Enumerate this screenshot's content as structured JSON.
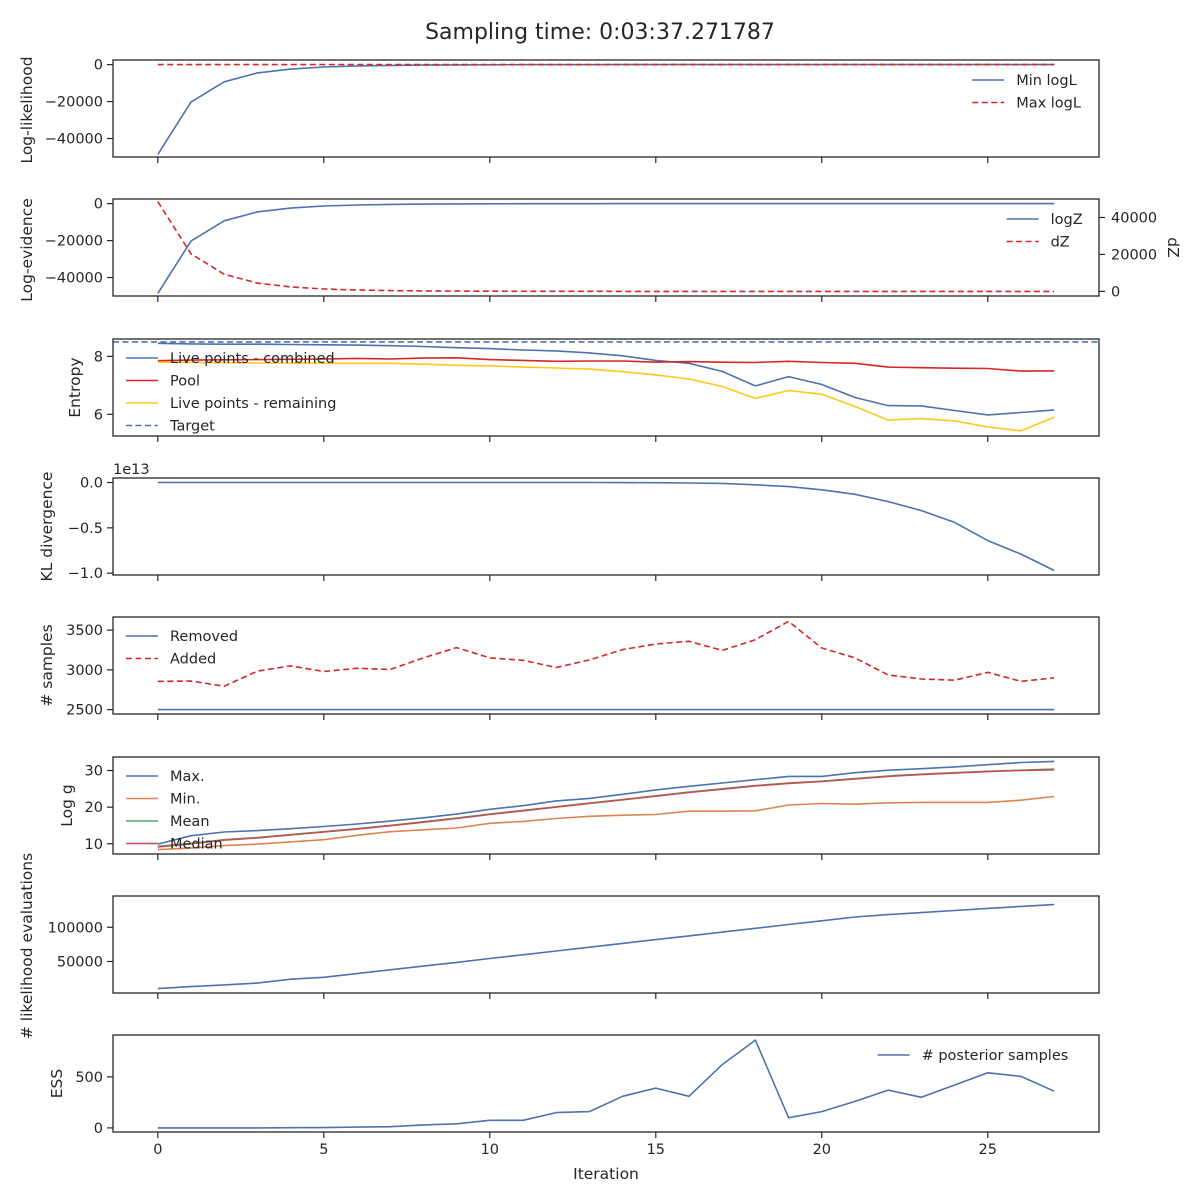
{
  "figure": {
    "title": "Sampling time: 0:03:37.271787",
    "xlabel": "Iteration"
  },
  "chart_data": [
    {
      "type": "line",
      "ylabel": "Log-likelihood",
      "xlim": [
        -1.35,
        28.35
      ],
      "ylim": [
        -50000,
        2500
      ],
      "yticks": [
        0,
        -20000,
        -40000
      ],
      "yticklabels": [
        "0",
        "−20000",
        "−40000"
      ],
      "legend": "upper right",
      "series": [
        {
          "name": "Min logL",
          "color": "#4c72b0",
          "dash": false,
          "x": [
            0,
            1,
            2,
            3,
            4,
            5,
            6,
            7,
            8,
            9,
            10,
            11,
            12,
            13,
            14,
            15,
            16,
            17,
            18,
            19,
            20,
            21,
            22,
            23,
            24,
            25,
            26,
            27
          ],
          "values": [
            -48600,
            -20300,
            -9300,
            -4500,
            -2400,
            -1300,
            -750,
            -420,
            -250,
            -150,
            -90,
            -55,
            -35,
            -20,
            -12,
            -7,
            -4,
            -2,
            -1,
            0,
            0,
            0,
            0,
            0,
            0,
            0,
            0,
            0
          ]
        },
        {
          "name": "Max logL",
          "color": "#d62728",
          "dash": true,
          "x": [
            0,
            27
          ],
          "values": [
            0,
            0
          ]
        }
      ]
    },
    {
      "type": "line",
      "ylabel": "Log-evidence",
      "y2label": "dZ",
      "xlim": [
        -1.35,
        28.35
      ],
      "ylim": [
        -50000,
        2500
      ],
      "yticks": [
        0,
        -20000,
        -40000
      ],
      "yticklabels": [
        "0",
        "−20000",
        "−40000"
      ],
      "y2lim": [
        -2500,
        50000
      ],
      "y2ticks": [
        0,
        20000,
        40000
      ],
      "y2ticklabels": [
        "0",
        "20000",
        "40000"
      ],
      "legend": "upper right",
      "series": [
        {
          "name": "logZ",
          "color": "#4c72b0",
          "dash": false,
          "axis": "left",
          "x": [
            0,
            1,
            2,
            3,
            4,
            5,
            6,
            7,
            8,
            9,
            10,
            11,
            12,
            13,
            14,
            15,
            16,
            17,
            18,
            19,
            20,
            21,
            22,
            23,
            24,
            25,
            26,
            27
          ],
          "values": [
            -48600,
            -20300,
            -9300,
            -4500,
            -2400,
            -1300,
            -750,
            -420,
            -250,
            -150,
            -90,
            -55,
            -35,
            -20,
            -12,
            -7,
            -4,
            -2,
            -1,
            0,
            0,
            0,
            0,
            0,
            0,
            0,
            0,
            0
          ]
        },
        {
          "name": "dZ",
          "color": "#d62728",
          "dash": true,
          "axis": "right",
          "x": [
            0,
            1,
            2,
            3,
            4,
            5,
            6,
            7,
            8,
            9,
            10,
            11,
            12,
            13,
            14,
            15,
            16,
            17,
            18,
            19,
            20,
            21,
            22,
            23,
            24,
            25,
            26,
            27
          ],
          "values": [
            48600,
            20300,
            9300,
            4500,
            2400,
            1300,
            750,
            420,
            250,
            150,
            90,
            55,
            35,
            20,
            12,
            7,
            4,
            2,
            1,
            0,
            0,
            0,
            0,
            0,
            0,
            0,
            0,
            0
          ]
        }
      ]
    },
    {
      "type": "line",
      "ylabel": "Entropy",
      "xlim": [
        -1.35,
        28.35
      ],
      "ylim": [
        5.25,
        8.6
      ],
      "yticks": [
        6,
        8
      ],
      "yticklabels": [
        "6",
        "8"
      ],
      "legend": "upper left",
      "series": [
        {
          "name": "Live points - combined",
          "color": "#4c72b0",
          "dash": false,
          "x": [
            0,
            1,
            2,
            3,
            4,
            5,
            6,
            7,
            8,
            9,
            10,
            11,
            12,
            13,
            14,
            15,
            16,
            17,
            18,
            19,
            20,
            21,
            22,
            23,
            24,
            25,
            26,
            27
          ],
          "values": [
            8.45,
            8.43,
            8.42,
            8.42,
            8.41,
            8.4,
            8.39,
            8.37,
            8.34,
            8.3,
            8.27,
            8.22,
            8.19,
            8.12,
            8.02,
            7.86,
            7.76,
            7.48,
            6.98,
            7.3,
            7.03,
            6.58,
            6.3,
            6.29,
            6.13,
            5.98,
            6.06,
            6.15
          ]
        },
        {
          "name": "Pool",
          "color": "#d62728",
          "dash": false,
          "x": [
            0,
            1,
            2,
            3,
            4,
            5,
            6,
            7,
            8,
            9,
            10,
            11,
            12,
            13,
            14,
            15,
            16,
            17,
            18,
            19,
            20,
            21,
            22,
            23,
            24,
            25,
            26,
            27
          ],
          "values": [
            7.85,
            7.87,
            7.88,
            7.89,
            7.9,
            7.91,
            7.93,
            7.91,
            7.94,
            7.95,
            7.89,
            7.86,
            7.83,
            7.84,
            7.84,
            7.8,
            7.82,
            7.8,
            7.79,
            7.83,
            7.79,
            7.76,
            7.63,
            7.61,
            7.59,
            7.58,
            7.49,
            7.5
          ]
        },
        {
          "name": "Live points - remaining",
          "color": "#ffc81e",
          "dash": false,
          "x": [
            0,
            1,
            2,
            3,
            4,
            5,
            6,
            7,
            8,
            9,
            10,
            11,
            12,
            13,
            14,
            15,
            16,
            17,
            18,
            19,
            20,
            21,
            22,
            23,
            24,
            25,
            26,
            27
          ],
          "values": [
            7.8,
            7.79,
            7.78,
            7.77,
            7.77,
            7.76,
            7.76,
            7.76,
            7.73,
            7.69,
            7.67,
            7.63,
            7.6,
            7.56,
            7.47,
            7.36,
            7.22,
            6.96,
            6.55,
            6.82,
            6.69,
            6.27,
            5.8,
            5.85,
            5.77,
            5.56,
            5.43,
            5.9
          ]
        },
        {
          "name": "Target",
          "color": "#4c72b0",
          "dash": true,
          "x": [
            -1.35,
            28.35
          ],
          "values": [
            8.5,
            8.5
          ]
        }
      ]
    },
    {
      "type": "line",
      "ylabel": "KL divergence",
      "offset_text": "1e13",
      "xlim": [
        -1.35,
        28.35
      ],
      "ylim": [
        -1.02,
        0.05
      ],
      "yticks": [
        0.0,
        -0.5,
        -1.0
      ],
      "yticklabels": [
        "0.0",
        "−0.5",
        "−1.0"
      ],
      "series": [
        {
          "name": "",
          "color": "#4c72b0",
          "dash": false,
          "x": [
            0,
            1,
            2,
            3,
            4,
            5,
            6,
            7,
            8,
            9,
            10,
            11,
            12,
            13,
            14,
            15,
            16,
            17,
            18,
            19,
            20,
            21,
            22,
            23,
            24,
            25,
            26,
            27
          ],
          "values": [
            0,
            0,
            0,
            0,
            0,
            0,
            0,
            0,
            0,
            0,
            0,
            0,
            0,
            0,
            -0.001,
            -0.002,
            -0.005,
            -0.01,
            -0.025,
            -0.045,
            -0.08,
            -0.13,
            -0.21,
            -0.31,
            -0.44,
            -0.64,
            -0.79,
            -0.97
          ]
        }
      ]
    },
    {
      "type": "line",
      "ylabel": "# samples",
      "xlim": [
        -1.35,
        28.35
      ],
      "ylim": [
        2445,
        3665
      ],
      "yticks": [
        2500,
        3000,
        3500
      ],
      "yticklabels": [
        "2500",
        "3000",
        "3500"
      ],
      "legend": "upper left",
      "series": [
        {
          "name": "Removed",
          "color": "#4c72b0",
          "dash": false,
          "x": [
            0,
            27
          ],
          "values": [
            2500,
            2500
          ]
        },
        {
          "name": "Added",
          "color": "#d62728",
          "dash": true,
          "x": [
            0,
            1,
            2,
            3,
            4,
            5,
            6,
            7,
            8,
            9,
            10,
            11,
            12,
            13,
            14,
            15,
            16,
            17,
            18,
            19,
            20,
            21,
            22,
            23,
            24,
            25,
            26,
            27
          ],
          "values": [
            2855,
            2860,
            2795,
            2985,
            3050,
            2980,
            3020,
            3005,
            3150,
            3280,
            3150,
            3120,
            3030,
            3125,
            3255,
            3325,
            3360,
            3245,
            3380,
            3610,
            3275,
            3150,
            2935,
            2885,
            2870,
            2970,
            2855,
            2900
          ]
        }
      ]
    },
    {
      "type": "line",
      "ylabel": "Log g",
      "xlim": [
        -1.35,
        28.35
      ],
      "ylim": [
        7.2,
        33.7
      ],
      "yticks": [
        10,
        20,
        30
      ],
      "yticklabels": [
        "10",
        "20",
        "30"
      ],
      "legend": "upper left",
      "series": [
        {
          "name": "Max.",
          "color": "#4c72b0",
          "dash": false,
          "x": [
            0,
            1,
            2,
            3,
            4,
            5,
            6,
            7,
            8,
            9,
            10,
            11,
            12,
            13,
            14,
            15,
            16,
            17,
            18,
            19,
            20,
            21,
            22,
            23,
            24,
            25,
            26,
            27
          ],
          "values": [
            9.9,
            12.2,
            13.2,
            13.6,
            14.1,
            14.7,
            15.4,
            16.2,
            17.1,
            18.1,
            19.4,
            20.4,
            21.7,
            22.4,
            23.5,
            24.7,
            25.7,
            26.6,
            27.5,
            28.4,
            28.4,
            29.4,
            30.1,
            30.5,
            31.0,
            31.6,
            32.2,
            32.5
          ]
        },
        {
          "name": "Min.",
          "color": "#dd8452",
          "dash": false,
          "x": [
            0,
            1,
            2,
            3,
            4,
            5,
            6,
            7,
            8,
            9,
            10,
            11,
            12,
            13,
            14,
            15,
            16,
            17,
            18,
            19,
            20,
            21,
            22,
            23,
            24,
            25,
            26,
            27
          ],
          "values": [
            8.4,
            8.8,
            9.5,
            9.9,
            10.5,
            11.1,
            12.3,
            13.3,
            13.8,
            14.3,
            15.6,
            16.1,
            16.9,
            17.5,
            17.8,
            18.0,
            18.9,
            18.9,
            19.0,
            20.6,
            21.0,
            20.8,
            21.2,
            21.3,
            21.3,
            21.3,
            21.9,
            22.9
          ]
        },
        {
          "name": "Mean",
          "color": "#55a868",
          "dash": false,
          "x": [
            0,
            1,
            2,
            3,
            4,
            5,
            6,
            7,
            8,
            9,
            10,
            11,
            12,
            13,
            14,
            15,
            16,
            17,
            18,
            19,
            20,
            21,
            22,
            23,
            24,
            25,
            26,
            27
          ],
          "values": [
            9.3,
            10.1,
            11.1,
            11.7,
            12.5,
            13.3,
            14.1,
            15.0,
            16.0,
            17.0,
            18.1,
            19.1,
            20.1,
            21.1,
            22.1,
            23.1,
            24.1,
            25.0,
            25.9,
            26.6,
            27.1,
            27.8,
            28.5,
            29.0,
            29.4,
            29.8,
            30.1,
            30.4
          ]
        },
        {
          "name": "Median",
          "color": "#c44e52",
          "dash": false,
          "x": [
            0,
            1,
            2,
            3,
            4,
            5,
            6,
            7,
            8,
            9,
            10,
            11,
            12,
            13,
            14,
            15,
            16,
            17,
            18,
            19,
            20,
            21,
            22,
            23,
            24,
            25,
            26,
            27
          ],
          "values": [
            9.1,
            10.0,
            11.0,
            11.6,
            12.4,
            13.2,
            14.0,
            14.9,
            15.9,
            16.9,
            18.0,
            19.0,
            20.0,
            21.0,
            22.0,
            23.0,
            24.0,
            24.9,
            25.8,
            26.5,
            27.0,
            27.7,
            28.4,
            28.9,
            29.3,
            29.7,
            30.0,
            30.2
          ]
        }
      ]
    },
    {
      "type": "line",
      "ylabel": "# likelihood evaluations",
      "xlim": [
        -1.35,
        28.35
      ],
      "ylim": [
        3900,
        145700
      ],
      "yticks": [
        50000,
        100000
      ],
      "yticklabels": [
        "50000",
        "100000"
      ],
      "series": [
        {
          "name": "",
          "color": "#4c72b0",
          "dash": false,
          "x": [
            0,
            1,
            2,
            3,
            4,
            5,
            6,
            7,
            8,
            9,
            10,
            11,
            12,
            13,
            14,
            15,
            16,
            17,
            18,
            19,
            20,
            21,
            22,
            23,
            24,
            25,
            26,
            27
          ],
          "values": [
            10300,
            13200,
            15800,
            18300,
            24100,
            26800,
            32300,
            37800,
            43200,
            48700,
            54300,
            59800,
            65300,
            70800,
            76400,
            81900,
            87400,
            92900,
            98500,
            104000,
            109500,
            115000,
            118500,
            121500,
            124500,
            127500,
            130500,
            133200
          ]
        }
      ]
    },
    {
      "type": "line",
      "ylabel": "ESS",
      "xlim": [
        -1.35,
        28.35
      ],
      "ylim": [
        -40,
        910
      ],
      "yticks": [
        0,
        500
      ],
      "yticklabels": [
        "0",
        "500"
      ],
      "legend": "upper right",
      "series": [
        {
          "name": "# posterior samples",
          "color": "#4c72b0",
          "dash": false,
          "x": [
            0,
            1,
            2,
            3,
            4,
            5,
            6,
            7,
            8,
            9,
            10,
            11,
            12,
            13,
            14,
            15,
            16,
            17,
            18,
            19,
            20,
            21,
            22,
            23,
            24,
            25,
            26,
            27
          ],
          "values": [
            0,
            0,
            0,
            0,
            2,
            3,
            8,
            12,
            30,
            40,
            75,
            75,
            150,
            160,
            310,
            390,
            310,
            620,
            860,
            100,
            160,
            260,
            370,
            300,
            420,
            540,
            505,
            360
          ]
        }
      ]
    }
  ],
  "xticks": [
    0,
    5,
    10,
    15,
    20,
    25
  ],
  "xticklabels": [
    "0",
    "5",
    "10",
    "15",
    "20",
    "25"
  ]
}
